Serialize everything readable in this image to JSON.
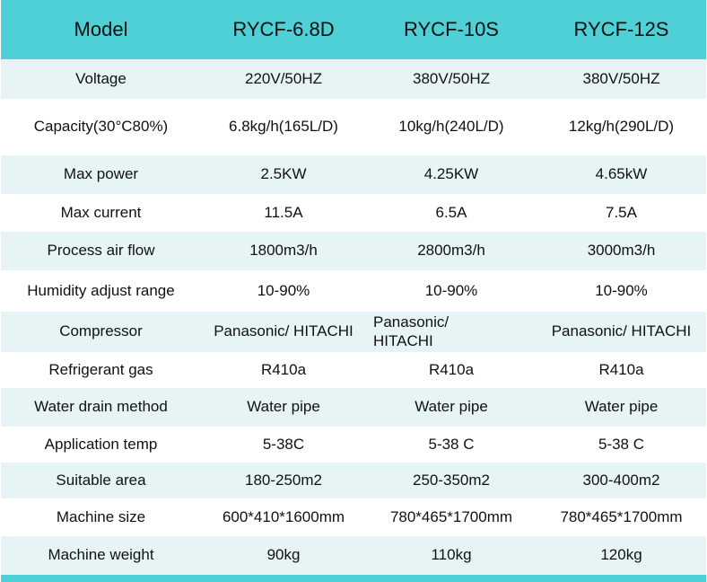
{
  "header": [
    "Model",
    "RYCF-6.8D",
    "RYCF-10S",
    "RYCF-12S"
  ],
  "rows": [
    {
      "label": "Voltage",
      "v1": "220V/50HZ",
      "v2": "380V/50HZ",
      "v3": "380V/50HZ"
    },
    {
      "label": "Capacity(30°C80%)",
      "v1": "6.8kg/h(165L/D)",
      "v2": "10kg/h(240L/D)",
      "v3": "12kg/h(290L/D)"
    },
    {
      "label": "Max power",
      "v1": "2.5KW",
      "v2": "4.25KW",
      "v3": "4.65kW"
    },
    {
      "label": "Max current",
      "v1": "11.5A",
      "v2": "6.5A",
      "v3": "7.5A"
    },
    {
      "label": "Process air flow",
      "v1": "1800m3/h",
      "v2": "2800m3/h",
      "v3": "3000m3/h"
    },
    {
      "label": "Humidity adjust range",
      "v1": "10-90%",
      "v2": "10-90%",
      "v3": "10-90%"
    },
    {
      "label": "Compressor",
      "v1": "Panasonic/ HITACHI",
      "v2": "Panasonic/ HITACHI",
      "v3": "Panasonic/ HITACHI"
    },
    {
      "label": "Refrigerant gas",
      "v1": "R410a",
      "v2": "R410a",
      "v3": "R410a"
    },
    {
      "label": "Water drain method",
      "v1": "Water pipe",
      "v2": "Water pipe",
      "v3": "Water pipe"
    },
    {
      "label": "Application temp",
      "v1": "5-38C",
      "v2": "5-38 C",
      "v3": "5-38 C"
    },
    {
      "label": "Suitable area",
      "v1": "180-250m2",
      "v2": "250-350m2",
      "v3": "300-400m2"
    },
    {
      "label": "Machine size",
      "v1": "600*410*1600mm",
      "v2": "780*465*1700mm",
      "v3": "780*465*1700mm"
    },
    {
      "label": "Machine weight",
      "v1": "90kg",
      "v2": "110kg",
      "v3": "120kg"
    }
  ],
  "colors": {
    "header_bg": "#4fcfd6",
    "odd_row_bg": "#e6f4f6",
    "even_row_bg": "#ffffff"
  }
}
